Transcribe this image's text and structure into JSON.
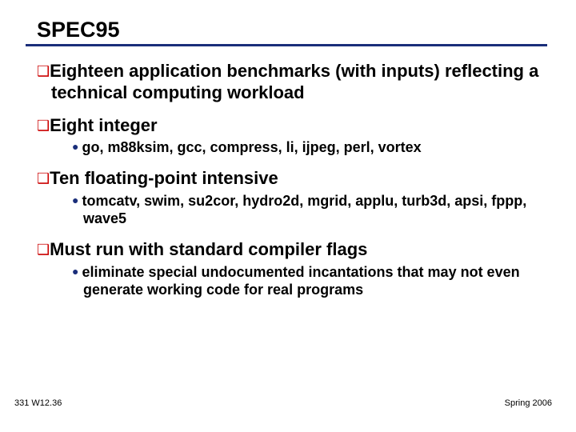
{
  "title": "SPEC95",
  "title_color": "#000000",
  "underline_color": "#1a2e7a",
  "bullet_square_color": "#cc0000",
  "bullet_dot_color": "#1a2e7a",
  "text_color": "#000000",
  "background_color": "#ffffff",
  "items": [
    {
      "text": "Eighteen application benchmarks (with inputs) reflecting a technical computing workload",
      "sub": []
    },
    {
      "text": "Eight integer",
      "sub": [
        "go, m88ksim, gcc, compress, li, ijpeg, perl, vortex"
      ]
    },
    {
      "text": "Ten floating-point intensive",
      "sub": [
        "tomcatv, swim, su2cor, hydro2d, mgrid, applu, turb3d, apsi, fppp, wave5"
      ]
    },
    {
      "text": "Must run with standard compiler flags",
      "sub": [
        "eliminate special undocumented incantations that may not even generate working code for real programs"
      ]
    }
  ],
  "footer_left": "331 W12.36",
  "footer_right": "Spring 2006"
}
